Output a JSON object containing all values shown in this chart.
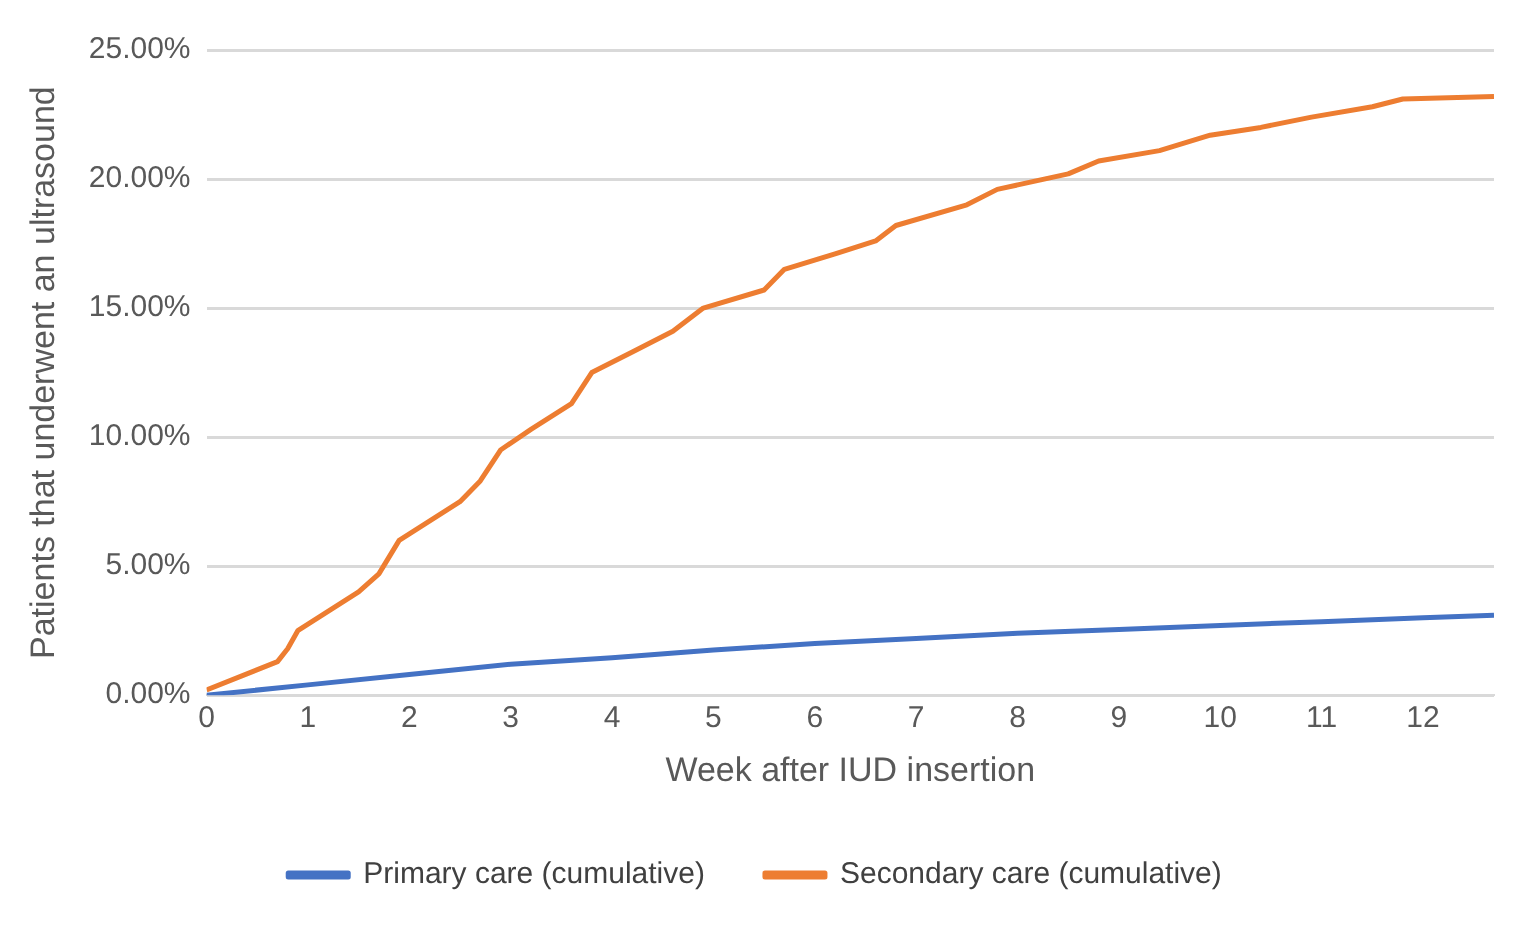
{
  "chart_data": {
    "type": "line",
    "xlabel": "Week after IUD insertion",
    "ylabel": "Patients that underwent an ultrasound",
    "xlim": [
      0,
      12.7
    ],
    "xticks": [
      0,
      1,
      2,
      3,
      4,
      5,
      6,
      7,
      8,
      9,
      10,
      11,
      12
    ],
    "ylim": [
      0,
      25
    ],
    "yticks": [
      {
        "value": 0,
        "label": "0.00%"
      },
      {
        "value": 5,
        "label": "5.00%"
      },
      {
        "value": 10,
        "label": "10.00%"
      },
      {
        "value": 15,
        "label": "15.00%"
      },
      {
        "value": 20,
        "label": "20.00%"
      },
      {
        "value": 25,
        "label": "25.00%"
      }
    ],
    "grid": "y",
    "legend": "bottom",
    "marker": "none",
    "line_style": "solid",
    "series": [
      {
        "name": "Primary care (cumulative)",
        "color": "#4472c4",
        "x": [
          0,
          1,
          2,
          3,
          4,
          5,
          6,
          7,
          8,
          9,
          10,
          11,
          12,
          12.7
        ],
        "values": [
          0,
          0.4,
          0.8,
          1.2,
          1.45,
          1.75,
          2.0,
          2.2,
          2.4,
          2.55,
          2.7,
          2.85,
          3.0,
          3.1
        ]
      },
      {
        "name": "Secondary care (cumulative)",
        "color": "#ed7d31",
        "x": [
          0,
          0.7,
          0.8,
          0.9,
          1.5,
          1.7,
          1.9,
          2.5,
          2.7,
          2.9,
          3.2,
          3.6,
          3.8,
          4.2,
          4.6,
          4.9,
          5.5,
          5.7,
          6.2,
          6.6,
          6.8,
          7.5,
          7.8,
          8.5,
          8.8,
          9.4,
          9.9,
          10.4,
          10.9,
          11.5,
          11.8,
          12.7
        ],
        "values": [
          0.2,
          1.3,
          1.8,
          2.5,
          4.0,
          4.7,
          6.0,
          7.5,
          8.3,
          9.5,
          10.3,
          11.3,
          12.5,
          13.3,
          14.1,
          15.0,
          15.7,
          16.5,
          17.1,
          17.6,
          18.2,
          19.0,
          19.6,
          20.2,
          20.7,
          21.1,
          21.7,
          22.0,
          22.4,
          22.8,
          23.1,
          23.2
        ]
      }
    ]
  }
}
